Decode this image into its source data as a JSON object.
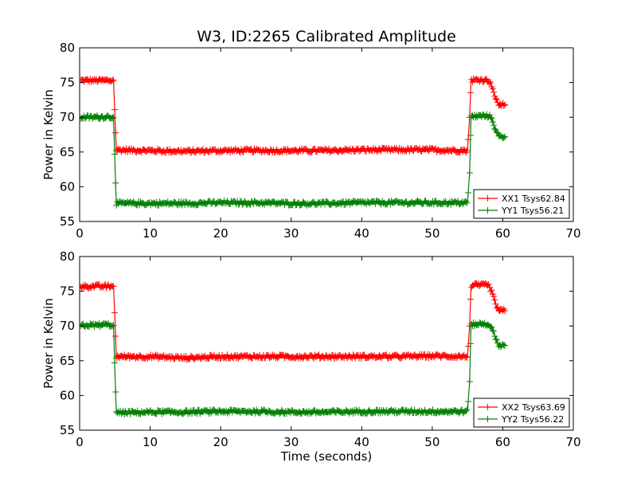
{
  "figure": {
    "title": "W3, ID:2265 Calibrated Amplitude"
  },
  "chart_data": [
    {
      "type": "line",
      "title": "W3, ID:2265 Calibrated Amplitude",
      "xlabel": "",
      "ylabel": "Power in Kelvin",
      "xlim": [
        0,
        70
      ],
      "ylim": [
        55,
        80
      ],
      "xticks": [
        0,
        10,
        20,
        30,
        40,
        50,
        60,
        70
      ],
      "yticks": [
        55,
        60,
        65,
        70,
        75,
        80
      ],
      "grid": false,
      "legend_position": "lower-right",
      "series": [
        {
          "name": "XX1 Tsys62.84",
          "color": "#ff0000",
          "marker": "plus",
          "points": [
            [
              0.2,
              75.3
            ],
            [
              2,
              75.3
            ],
            [
              4,
              75.3
            ],
            [
              4.8,
              75.3
            ],
            [
              5.05,
              69
            ],
            [
              5.2,
              65.3
            ],
            [
              10,
              65.2
            ],
            [
              15,
              65.1
            ],
            [
              20,
              65.2
            ],
            [
              25,
              65.2
            ],
            [
              30,
              65.2
            ],
            [
              35,
              65.2
            ],
            [
              40,
              65.3
            ],
            [
              45,
              65.3
            ],
            [
              50,
              65.3
            ],
            [
              55,
              65.2
            ],
            [
              55.3,
              70
            ],
            [
              55.5,
              75.3
            ],
            [
              57,
              75.4
            ],
            [
              58,
              75.3
            ],
            [
              58.5,
              74.5
            ],
            [
              59,
              72.5
            ],
            [
              59.5,
              71.8
            ],
            [
              60.3,
              71.8
            ]
          ]
        },
        {
          "name": "YY1 Tsys56.21",
          "color": "#008000",
          "marker": "plus",
          "points": [
            [
              0.2,
              70
            ],
            [
              2,
              70
            ],
            [
              4,
              70.1
            ],
            [
              4.8,
              70
            ],
            [
              5.05,
              62
            ],
            [
              5.2,
              57.6
            ],
            [
              10,
              57.6
            ],
            [
              15,
              57.6
            ],
            [
              20,
              57.7
            ],
            [
              25,
              57.7
            ],
            [
              30,
              57.6
            ],
            [
              35,
              57.6
            ],
            [
              40,
              57.7
            ],
            [
              45,
              57.7
            ],
            [
              50,
              57.7
            ],
            [
              55,
              57.7
            ],
            [
              55.3,
              62
            ],
            [
              55.5,
              70.1
            ],
            [
              57,
              70.2
            ],
            [
              58,
              70.2
            ],
            [
              58.5,
              69.8
            ],
            [
              59,
              68
            ],
            [
              59.5,
              67.2
            ],
            [
              60.3,
              67.2
            ]
          ]
        }
      ]
    },
    {
      "type": "line",
      "title": "",
      "xlabel": "Time (seconds)",
      "ylabel": "Power in Kelvin",
      "xlim": [
        0,
        70
      ],
      "ylim": [
        55,
        80
      ],
      "xticks": [
        0,
        10,
        20,
        30,
        40,
        50,
        60,
        70
      ],
      "yticks": [
        55,
        60,
        65,
        70,
        75,
        80
      ],
      "grid": false,
      "legend_position": "lower-right",
      "series": [
        {
          "name": "XX2 Tsys63.69",
          "color": "#ff0000",
          "marker": "plus",
          "points": [
            [
              0.2,
              75.7
            ],
            [
              2,
              75.7
            ],
            [
              4,
              75.7
            ],
            [
              4.8,
              75.7
            ],
            [
              5.05,
              70
            ],
            [
              5.2,
              65.6
            ],
            [
              10,
              65.6
            ],
            [
              15,
              65.4
            ],
            [
              20,
              65.6
            ],
            [
              25,
              65.6
            ],
            [
              30,
              65.6
            ],
            [
              35,
              65.6
            ],
            [
              40,
              65.6
            ],
            [
              45,
              65.6
            ],
            [
              50,
              65.7
            ],
            [
              55,
              65.6
            ],
            [
              55.3,
              70
            ],
            [
              55.5,
              75.8
            ],
            [
              57,
              75.9
            ],
            [
              58,
              75.8
            ],
            [
              58.5,
              74.8
            ],
            [
              59,
              73
            ],
            [
              59.5,
              72.2
            ],
            [
              60.3,
              72.2
            ]
          ]
        },
        {
          "name": "YY2 Tsys56.22",
          "color": "#008000",
          "marker": "plus",
          "points": [
            [
              0.2,
              70.1
            ],
            [
              2,
              70.1
            ],
            [
              4,
              70.2
            ],
            [
              4.8,
              70.1
            ],
            [
              5.05,
              62
            ],
            [
              5.2,
              57.5
            ],
            [
              10,
              57.6
            ],
            [
              15,
              57.6
            ],
            [
              20,
              57.7
            ],
            [
              25,
              57.7
            ],
            [
              30,
              57.6
            ],
            [
              35,
              57.6
            ],
            [
              40,
              57.7
            ],
            [
              45,
              57.7
            ],
            [
              50,
              57.7
            ],
            [
              55,
              57.7
            ],
            [
              55.3,
              62
            ],
            [
              55.5,
              70.2
            ],
            [
              57,
              70.3
            ],
            [
              58,
              70.2
            ],
            [
              58.5,
              69.8
            ],
            [
              59,
              68
            ],
            [
              59.5,
              67.2
            ],
            [
              60.3,
              67.2
            ]
          ]
        }
      ]
    }
  ]
}
